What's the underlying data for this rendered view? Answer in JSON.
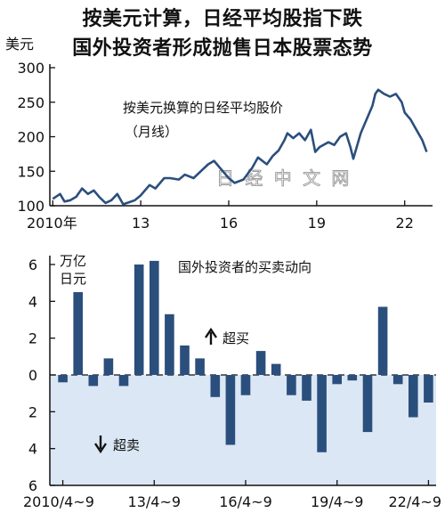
{
  "title_line1": "按美元计算，日经平均股指下跌",
  "title_line2": "国外投资者形成抛售日本股票态势",
  "watermark": "日 经 中 文 网",
  "colors": {
    "line": "#2b4f7d",
    "bar": "#2b4f7d",
    "band": "#dbe7f4",
    "axis": "#111111"
  },
  "chart_data": [
    {
      "type": "line",
      "title": "按美元换算的日经平均股价",
      "subtitle": "（月线）",
      "ylabel": "美元",
      "ylim": [
        100,
        300
      ],
      "yticks": [
        100,
        150,
        200,
        250,
        300
      ],
      "xlim": [
        2009.9,
        2022.95
      ],
      "xtick_labels": [
        {
          "x": 2010,
          "label": "2010年"
        },
        {
          "x": 2013,
          "label": "13"
        },
        {
          "x": 2016,
          "label": "16"
        },
        {
          "x": 2019,
          "label": "19"
        },
        {
          "x": 2022,
          "label": "22"
        }
      ],
      "grid": false,
      "series": [
        {
          "x": [
            2010.0,
            2010.25,
            2010.4,
            2010.6,
            2010.8,
            2011.0,
            2011.2,
            2011.4,
            2011.6,
            2011.8,
            2012.0,
            2012.2,
            2012.4,
            2012.6,
            2012.8,
            2013.0,
            2013.3,
            2013.5,
            2013.8,
            2014.0,
            2014.3,
            2014.5,
            2014.8,
            2015.0,
            2015.3,
            2015.5,
            2015.8,
            2016.0,
            2016.2,
            2016.5,
            2016.8,
            2017.0,
            2017.3,
            2017.5,
            2017.7,
            2017.9,
            2018.0,
            2018.2,
            2018.4,
            2018.6,
            2018.8,
            2018.95,
            2019.1,
            2019.4,
            2019.6,
            2019.8,
            2020.0,
            2020.15,
            2020.25,
            2020.5,
            2020.8,
            2020.9,
            2021.0,
            2021.1,
            2021.3,
            2021.5,
            2021.7,
            2021.9,
            2022.0,
            2022.2,
            2022.4,
            2022.6,
            2022.75
          ],
          "y": [
            110,
            117,
            106,
            108,
            113,
            125,
            117,
            122,
            112,
            104,
            108,
            117,
            102,
            105,
            108,
            115,
            130,
            125,
            140,
            140,
            138,
            145,
            140,
            148,
            160,
            165,
            150,
            140,
            133,
            138,
            155,
            170,
            160,
            172,
            180,
            195,
            205,
            198,
            205,
            195,
            210,
            178,
            185,
            192,
            188,
            200,
            205,
            185,
            168,
            205,
            235,
            245,
            262,
            268,
            262,
            258,
            262,
            250,
            235,
            225,
            210,
            195,
            178
          ]
        }
      ]
    },
    {
      "type": "bar",
      "title": "国外投资者的买卖动向",
      "ylabel": "万亿日元",
      "ylabel_lines": [
        "万亿",
        "日元"
      ],
      "ylim": [
        -6,
        6
      ],
      "yticks": [
        6,
        4,
        2,
        0,
        2,
        4,
        6
      ],
      "ytick_values": [
        6,
        4,
        2,
        0,
        -2,
        -4,
        -6
      ],
      "xtick_labels": [
        {
          "index": 0,
          "label": "2010/4~9"
        },
        {
          "index": 6,
          "label": "13/4~9"
        },
        {
          "index": 12,
          "label": "16/4~9"
        },
        {
          "index": 18,
          "label": "19/4~9"
        },
        {
          "index": 24,
          "label": "22/4~9"
        }
      ],
      "annotations": {
        "buy": "超买",
        "sell": "超卖"
      },
      "values": [
        -0.4,
        4.5,
        -0.6,
        0.9,
        -0.6,
        6.0,
        6.2,
        3.3,
        1.6,
        0.9,
        -1.2,
        -3.8,
        -1.1,
        1.3,
        0.6,
        -1.1,
        -1.4,
        -4.2,
        -0.5,
        -0.3,
        -3.1,
        3.7,
        -0.5,
        -2.3,
        -1.5
      ]
    }
  ]
}
